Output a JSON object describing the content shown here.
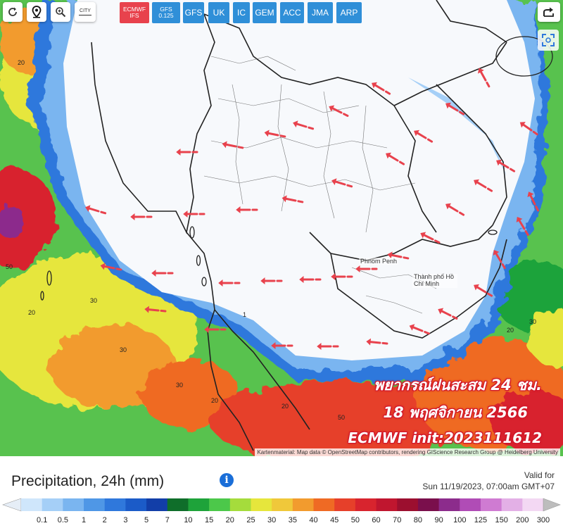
{
  "toolbar": {
    "tools": [
      {
        "name": "refresh-icon"
      },
      {
        "name": "location-pin-icon"
      },
      {
        "name": "zoom-icon"
      },
      {
        "name": "city-toggle",
        "label": "CITY"
      }
    ],
    "models": [
      {
        "label": "ECMWF IFS",
        "active": true
      },
      {
        "label": "GFS 0.125",
        "active": false
      },
      {
        "label": "GFS",
        "active": false
      },
      {
        "label": "UK",
        "active": false
      },
      {
        "label": "IC",
        "active": false
      },
      {
        "label": "GEM",
        "active": false
      },
      {
        "label": "ACC",
        "active": false
      },
      {
        "label": "JMA",
        "active": false
      },
      {
        "label": "ARP",
        "active": false
      }
    ]
  },
  "map": {
    "places": [
      "Phnom Penh",
      "Thành phố Hồ Chí Minh"
    ],
    "overlay_lines": [
      "พยากรณ์ฝนสะสม 24 ชม.",
      "18 พฤศจิกายน 2566",
      "ECMWF init:2023111612"
    ],
    "attribution": "Kartenmaterial: Map data © OpenStreetMap contributors, rendering GIScience Research Group @ Heidelberg University"
  },
  "legend": {
    "title": "Precipitation, 24h (mm)",
    "valid_label": "Valid for",
    "valid_time": "Sun 11/19/2023, 07:00am GMT+07",
    "scale_labels": [
      "0.1",
      "0.5",
      "1",
      "2",
      "3",
      "5",
      "7",
      "10",
      "15",
      "20",
      "25",
      "30",
      "35",
      "40",
      "45",
      "50",
      "60",
      "70",
      "80",
      "90",
      "100",
      "125",
      "150",
      "200",
      "300"
    ],
    "scale_colors": [
      "#cfe6fb",
      "#a5cff7",
      "#7ab5f0",
      "#4f97e6",
      "#2f78dc",
      "#1b5bc8",
      "#123ea8",
      "#0f6e2a",
      "#1ea33a",
      "#4cc84a",
      "#a5dc3c",
      "#e6e63c",
      "#f0c83a",
      "#f29b2e",
      "#ef6a24",
      "#e6402a",
      "#d8242e",
      "#c0162f",
      "#9c0f2f",
      "#7a0f4c",
      "#8c2c8c",
      "#b04cb6",
      "#cf7bd2",
      "#e3b0e6",
      "#f3d8f3"
    ]
  }
}
